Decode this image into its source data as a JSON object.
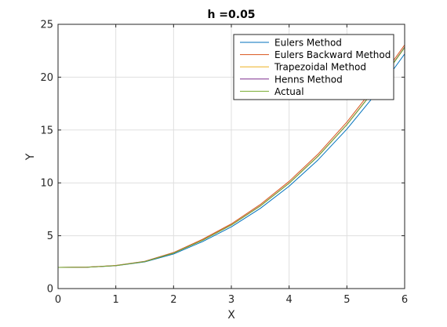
{
  "chart_data": {
    "type": "line",
    "title": "h =0.05",
    "xlabel": "X",
    "ylabel": "Y",
    "xlim": [
      0,
      6
    ],
    "ylim": [
      0,
      25
    ],
    "x_ticks": [
      0,
      1,
      2,
      3,
      4,
      5,
      6
    ],
    "y_ticks": [
      0,
      5,
      10,
      15,
      20,
      25
    ],
    "grid": true,
    "legend_position": "top-right",
    "x": [
      0,
      0.5,
      1,
      1.5,
      2,
      2.5,
      3,
      3.5,
      4,
      4.5,
      5,
      5.5,
      6
    ],
    "series": [
      {
        "name": "Eulers Method",
        "color": "#0072BD",
        "values": [
          2.0,
          2.02,
          2.16,
          2.52,
          3.27,
          4.44,
          5.84,
          7.58,
          9.68,
          12.17,
          15.08,
          18.42,
          22.2
        ]
      },
      {
        "name": "Eulers Backward Method",
        "color": "#D95319",
        "values": [
          2.0,
          2.03,
          2.19,
          2.58,
          3.41,
          4.66,
          6.12,
          7.95,
          10.14,
          12.72,
          15.75,
          19.24,
          23.05
        ]
      },
      {
        "name": "Trapezoidal Method",
        "color": "#EDB120",
        "values": [
          2.0,
          2.02,
          2.17,
          2.56,
          3.37,
          4.58,
          6.02,
          7.82,
          9.98,
          12.53,
          15.52,
          18.98,
          22.85
        ]
      },
      {
        "name": "Henns Method",
        "color": "#7E2F8E",
        "values": [
          2.0,
          2.02,
          2.17,
          2.56,
          3.36,
          4.57,
          6.01,
          7.81,
          9.97,
          12.52,
          15.51,
          18.97,
          22.84
        ]
      },
      {
        "name": "Actual",
        "color": "#77AC30",
        "values": [
          2.0,
          2.02,
          2.17,
          2.55,
          3.35,
          4.56,
          6.0,
          7.8,
          9.96,
          12.51,
          15.5,
          18.95,
          22.8
        ]
      }
    ]
  }
}
